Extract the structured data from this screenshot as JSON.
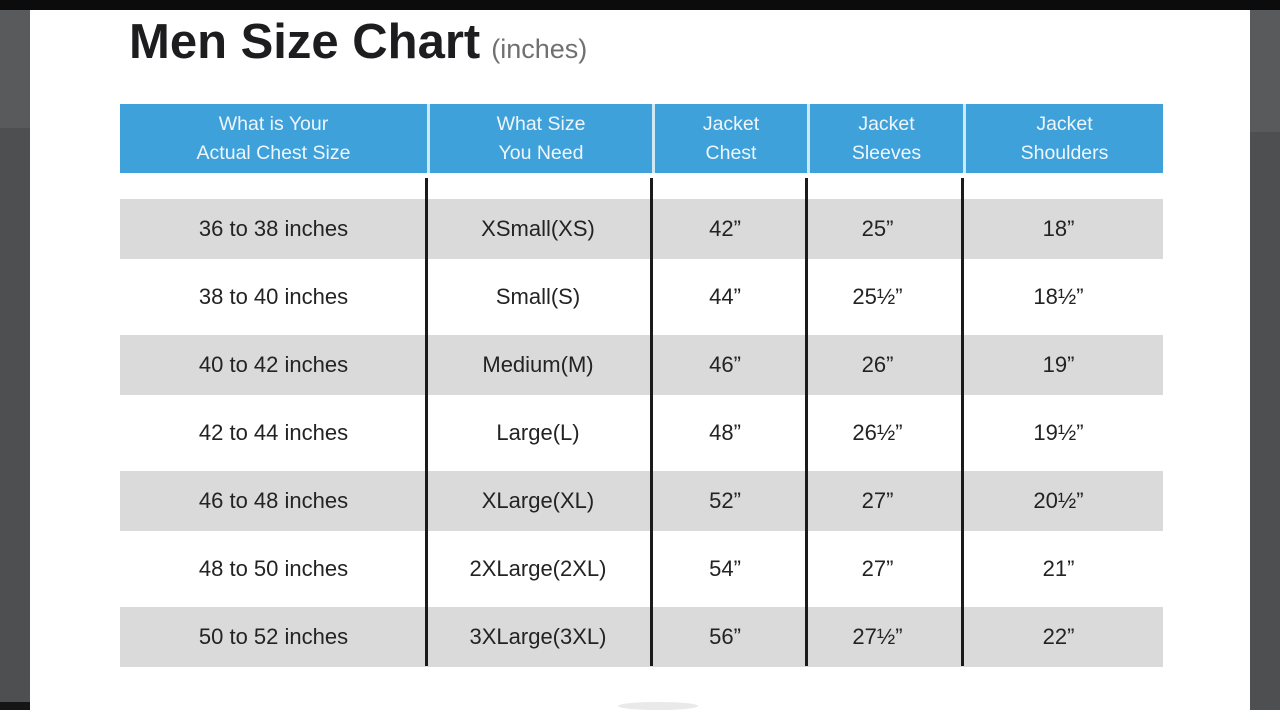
{
  "page": {
    "title": "Men Size Chart",
    "title_suffix": "(inches)"
  },
  "colors": {
    "header_blue": "#3fa1da",
    "header_text": "#eef6fc",
    "stripe_gray": "#dadada",
    "body_text": "#232323",
    "letterbox_gray": "#4e4f51",
    "top_bar_black": "#0c0c0c"
  },
  "table": {
    "columns": [
      {
        "label": "What is Your\nActual Chest Size"
      },
      {
        "label": "What Size\nYou Need"
      },
      {
        "label": "Jacket\nChest"
      },
      {
        "label": "Jacket\nSleeves"
      },
      {
        "label": "Jacket\nShoulders"
      }
    ],
    "rows": [
      {
        "cells": [
          "36 to 38 inches",
          "XSmall(XS)",
          "42”",
          "25”",
          "18”"
        ]
      },
      {
        "cells": [
          "38 to 40 inches",
          "Small(S)",
          "44”",
          "25½”",
          "18½”"
        ]
      },
      {
        "cells": [
          "40 to 42 inches",
          "Medium(M)",
          "46”",
          "26”",
          "19”"
        ]
      },
      {
        "cells": [
          "42 to 44 inches",
          "Large(L)",
          "48”",
          "26½”",
          "19½”"
        ]
      },
      {
        "cells": [
          "46 to 48 inches",
          "XLarge(XL)",
          "52”",
          "27”",
          "20½”"
        ]
      },
      {
        "cells": [
          "48 to 50 inches",
          "2XLarge(2XL)",
          "54”",
          "27”",
          "21”"
        ]
      },
      {
        "cells": [
          "50 to 52 inches",
          "3XLarge(3XL)",
          "56”",
          "27½”",
          "22”"
        ]
      }
    ]
  },
  "chart_data": {
    "type": "table",
    "title": "Men Size Chart (inches)",
    "columns": [
      "What is Your Actual Chest Size",
      "What Size You Need",
      "Jacket Chest",
      "Jacket Sleeves",
      "Jacket Shoulders"
    ],
    "rows": [
      [
        "36 to 38 inches",
        "XSmall(XS)",
        "42",
        "25",
        "18"
      ],
      [
        "38 to 40 inches",
        "Small(S)",
        "44",
        "25.5",
        "18.5"
      ],
      [
        "40 to 42 inches",
        "Medium(M)",
        "46",
        "26",
        "19"
      ],
      [
        "42 to 44 inches",
        "Large(L)",
        "48",
        "26.5",
        "19.5"
      ],
      [
        "46 to 48 inches",
        "XLarge(XL)",
        "52",
        "27",
        "20.5"
      ],
      [
        "48 to 50 inches",
        "2XLarge(2XL)",
        "54",
        "27",
        "21"
      ],
      [
        "50 to 52 inches",
        "3XLarge(3XL)",
        "56",
        "27.5",
        "22"
      ]
    ],
    "units": "inches",
    "layout": {
      "striped_rows": "odd",
      "header_fill": "#3fa1da",
      "column_dividers": "black"
    }
  }
}
